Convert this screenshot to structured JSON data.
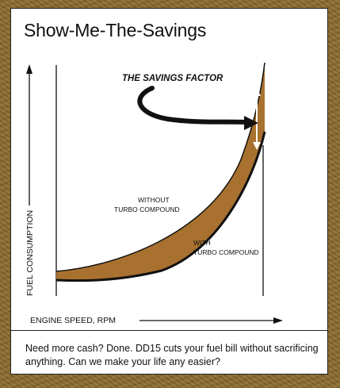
{
  "title": "Show-Me-The-Savings",
  "annotation": "THE SAVINGS FACTOR",
  "curve_labels": {
    "without": [
      "WITHOUT",
      "TURBO COMPOUND"
    ],
    "with": [
      "WITH",
      "TURBO COMPOUND"
    ]
  },
  "axes": {
    "y_label": "FUEL CONSUMPTION",
    "x_label": "ENGINE SPEED, RPM"
  },
  "caption": "Need more cash? Done. DD15 cuts your fuel bill without sacrificing anything. Can we make your life any easier?",
  "colors": {
    "band_fill": "#a8712f",
    "background": "#8a6a2c",
    "arrow": "#ffffff"
  }
}
